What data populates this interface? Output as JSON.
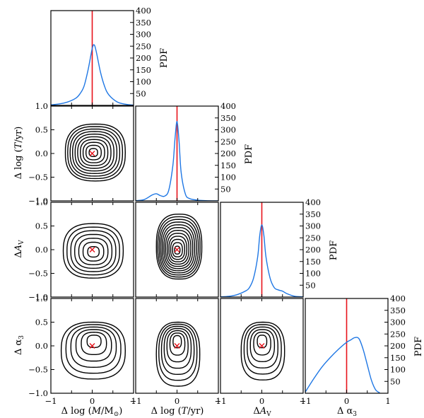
{
  "chart_data": [
    {
      "type": "line",
      "panel": "1D PDF of delta log mass",
      "xlim": [
        -1.0,
        1.0
      ],
      "ylim": [
        0,
        400
      ],
      "ylabel": "PDF",
      "yticks": [
        "50",
        "100",
        "150",
        "200",
        "250",
        "300",
        "350",
        "400"
      ],
      "truth_x": 0.0,
      "x": [
        -1.0,
        -0.8,
        -0.6,
        -0.4,
        -0.3,
        -0.2,
        -0.1,
        0.0,
        0.05,
        0.1,
        0.2,
        0.3,
        0.4,
        0.6,
        0.8,
        1.0
      ],
      "y": [
        2,
        6,
        14,
        30,
        48,
        80,
        150,
        240,
        255,
        225,
        140,
        80,
        45,
        15,
        5,
        1
      ]
    },
    {
      "type": "line",
      "panel": "1D PDF of delta log age",
      "xlim": [
        -1.0,
        1.0
      ],
      "ylim": [
        0,
        400
      ],
      "ylabel": "PDF",
      "yticks": [
        "50",
        "100",
        "150",
        "200",
        "250",
        "300",
        "350",
        "400"
      ],
      "truth_x": 0.0,
      "x": [
        -1.0,
        -0.8,
        -0.6,
        -0.5,
        -0.4,
        -0.3,
        -0.2,
        -0.1,
        -0.05,
        0.0,
        0.05,
        0.1,
        0.2,
        0.3,
        0.5,
        0.7,
        1.0
      ],
      "y": [
        1,
        5,
        25,
        30,
        22,
        20,
        45,
        150,
        260,
        335,
        250,
        120,
        30,
        10,
        3,
        1,
        0
      ]
    },
    {
      "type": "line",
      "panel": "1D PDF of delta A_V",
      "xlim": [
        -1.0,
        1.0
      ],
      "ylim": [
        0,
        400
      ],
      "ylabel": "PDF",
      "yticks": [
        "50",
        "100",
        "150",
        "200",
        "250",
        "300",
        "350",
        "400"
      ],
      "truth_x": 0.0,
      "x": [
        -1.0,
        -0.8,
        -0.6,
        -0.4,
        -0.3,
        -0.2,
        -0.1,
        -0.05,
        0.0,
        0.05,
        0.1,
        0.2,
        0.3,
        0.4,
        0.5,
        0.6,
        0.8,
        1.0
      ],
      "y": [
        1,
        3,
        10,
        25,
        40,
        80,
        170,
        260,
        305,
        260,
        170,
        80,
        40,
        30,
        25,
        15,
        3,
        1
      ]
    },
    {
      "type": "line",
      "panel": "1D PDF of delta alpha_3",
      "xlim": [
        -1.0,
        1.0
      ],
      "ylim": [
        0,
        400
      ],
      "ylabel": "PDF",
      "xlabel": "Δ α₃",
      "yticks": [
        "50",
        "100",
        "150",
        "200",
        "250",
        "300",
        "350",
        "400"
      ],
      "xticks": [
        "−1",
        "0",
        "1"
      ],
      "truth_x": 0.0,
      "x": [
        -1.0,
        -0.8,
        -0.6,
        -0.4,
        -0.2,
        0.0,
        0.1,
        0.2,
        0.3,
        0.4,
        0.5,
        0.6,
        0.7,
        0.8
      ],
      "y": [
        5,
        60,
        110,
        150,
        185,
        215,
        225,
        235,
        230,
        185,
        120,
        55,
        15,
        2
      ]
    },
    {
      "type": "contour",
      "panel": "delta log age vs delta log mass",
      "xlim": [
        -1.0,
        1.0
      ],
      "ylim": [
        -1.0,
        1.0
      ],
      "ylabel": "Δ log (T / yr)",
      "yticks": [
        "1.0",
        "0.5",
        "0.0",
        "−0.5",
        "−1.0"
      ],
      "truth": [
        0.0,
        0.0
      ],
      "peak": [
        0.02,
        0.02
      ],
      "levels": 10,
      "outer_extent": {
        "x": [
          -0.65,
          0.8
        ],
        "y": [
          -0.58,
          0.62
        ]
      }
    },
    {
      "type": "contour",
      "panel": "delta A_V vs delta log mass",
      "xlim": [
        -1.0,
        1.0
      ],
      "ylim": [
        -1.0,
        1.0
      ],
      "ylabel": "Δ A_V",
      "yticks": [
        "1.0",
        "0.5",
        "0.0",
        "−0.5",
        "−1.0"
      ],
      "truth": [
        0.0,
        0.0
      ],
      "peak": [
        0.03,
        -0.05
      ],
      "levels": 7,
      "outer_extent": {
        "x": [
          -0.7,
          0.75
        ],
        "y": [
          -0.6,
          0.55
        ]
      }
    },
    {
      "type": "contour",
      "panel": "delta A_V vs delta log age",
      "xlim": [
        -1.0,
        1.0
      ],
      "ylim": [
        -1.0,
        1.0
      ],
      "truth": [
        0.0,
        0.0
      ],
      "peak": [
        0.0,
        -0.02
      ],
      "levels": 12,
      "outer_extent": {
        "x": [
          -0.5,
          0.6
        ],
        "y": [
          -0.62,
          0.75
        ]
      }
    },
    {
      "type": "contour",
      "panel": "delta alpha_3 vs delta log mass",
      "xlim": [
        -1.0,
        1.0
      ],
      "ylim": [
        -1.0,
        1.0
      ],
      "xlabel": "Δ log (M / M☉)",
      "ylabel": "Δ α₃",
      "yticks": [
        "1.0",
        "0.5",
        "0.0",
        "−0.5",
        "−1.0"
      ],
      "xticks": [
        "−1",
        "0",
        "1"
      ],
      "truth": [
        0.0,
        0.0
      ],
      "peak": [
        0.05,
        0.15
      ],
      "levels": 6,
      "outer_extent": {
        "x": [
          -0.75,
          0.8
        ],
        "y": [
          -0.7,
          0.5
        ]
      }
    },
    {
      "type": "contour",
      "panel": "delta alpha_3 vs delta log age",
      "xlim": [
        -1.0,
        1.0
      ],
      "ylim": [
        -1.0,
        1.0
      ],
      "xlabel": "Δ log (T / yr)",
      "xticks": [
        "−1",
        "0",
        "1"
      ],
      "truth": [
        0.0,
        0.0
      ],
      "peak": [
        0.0,
        0.15
      ],
      "levels": 7,
      "outer_extent": {
        "x": [
          -0.5,
          0.55
        ],
        "y": [
          -0.85,
          0.5
        ]
      }
    },
    {
      "type": "contour",
      "panel": "delta alpha_3 vs delta A_V",
      "xlim": [
        -1.0,
        1.0
      ],
      "ylim": [
        -1.0,
        1.0
      ],
      "xlabel": "Δ A_V",
      "xticks": [
        "−1",
        "0",
        "1"
      ],
      "truth": [
        0.0,
        0.0
      ],
      "peak": [
        0.0,
        0.15
      ],
      "levels": 6,
      "outer_extent": {
        "x": [
          -0.5,
          0.55
        ],
        "y": [
          -0.72,
          0.5
        ]
      }
    }
  ],
  "colors": {
    "pdf_line": "#1f77e4",
    "truth_line": "#e8131b",
    "truth_marker": "#e8131b",
    "contour": "#000000",
    "axes": "#000000"
  },
  "labels": {
    "pdf": "PDF",
    "x_mass_main": "Δ log (",
    "x_mass_M": "M",
    "x_mass_over": "/M",
    "x_mass_sun": "⊙",
    "x_mass_end": ")",
    "x_age_main": "Δ log (",
    "x_age_T": "T",
    "x_age_end": "/yr)",
    "x_av_delta": "Δ",
    "x_av_A": "A",
    "x_av_sub": "V",
    "x_alpha_main": "Δ α",
    "x_alpha_sub": "3",
    "y_age_main": "Δ log (",
    "y_age_T": "T",
    "y_age_end": "/yr)",
    "y_av_delta": "Δ",
    "y_av_A": "A",
    "y_av_sub": "V",
    "y_alpha_main": "Δ α",
    "y_alpha_sub": "3"
  }
}
